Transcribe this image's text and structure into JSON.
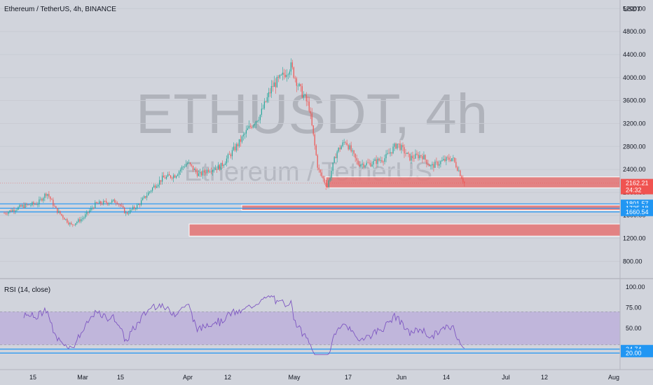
{
  "header": {
    "symbol_title": "Ethereum / TetherUS, 4h, BINANCE",
    "currency": "USDT"
  },
  "watermark": {
    "ticker": "ETHUSDT, 4h",
    "name": "Ethereum / TetherUS"
  },
  "rsi_label": "RSI (14, close)",
  "price_tags": [
    {
      "id": "last",
      "value": "2162.21",
      "countdown": "24:32",
      "color": "#f05350"
    },
    {
      "id": "l1",
      "value": "1801.57",
      "color": "#2196f3"
    },
    {
      "id": "l2",
      "value": "1725.18",
      "color": "#2196f3"
    },
    {
      "id": "l3",
      "value": "1660.54",
      "color": "#2196f3"
    }
  ],
  "rsi_tags": [
    {
      "id": "r1",
      "value": "24.74",
      "color": "#2196f3"
    },
    {
      "id": "r2",
      "value": "20.00",
      "color": "#2196f3"
    }
  ],
  "colors": {
    "up": "#26a69a",
    "down": "#ef5350",
    "rsi_line": "#7e57c2",
    "rsi_band": "#b39ddb",
    "zone_fill": "#e57373",
    "level_line": "#2196f3"
  },
  "chart_data": [
    {
      "type": "candlestick",
      "title": "Ethereum / TetherUS, 4h, BINANCE",
      "ylabel": "USDT",
      "y_ticks": [
        "800.00",
        "1200.00",
        "1600.00",
        "2000.00",
        "2400.00",
        "2800.00",
        "3200.00",
        "3600.00",
        "4000.00",
        "4400.00",
        "4800.00",
        "5200.00"
      ],
      "x_ticks": [
        "15",
        "Mar",
        "15",
        "Apr",
        "12",
        "May",
        "17",
        "Jun",
        "14",
        "Jul",
        "12",
        "Aug"
      ],
      "ylim": [
        500,
        5350
      ],
      "last_price": 2162.21,
      "horizontal_levels": [
        1801.57,
        1725.18,
        1660.54
      ],
      "zones": [
        {
          "low": 2080,
          "high": 2270
        },
        {
          "low": 1690,
          "high": 1780
        },
        {
          "low": 1240,
          "high": 1450
        }
      ],
      "close_path": [
        [
          0,
          1640
        ],
        [
          0.06,
          1760
        ],
        [
          0.11,
          1810
        ],
        [
          0.14,
          2000
        ],
        [
          0.17,
          1700
        ],
        [
          0.22,
          1430
        ],
        [
          0.26,
          1560
        ],
        [
          0.3,
          1800
        ],
        [
          0.37,
          1850
        ],
        [
          0.4,
          1630
        ],
        [
          0.44,
          1780
        ],
        [
          0.49,
          2100
        ],
        [
          0.52,
          2250
        ],
        [
          0.56,
          2300
        ],
        [
          0.6,
          2520
        ],
        [
          0.64,
          2300
        ],
        [
          0.67,
          2400
        ],
        [
          0.71,
          2450
        ],
        [
          0.74,
          2650
        ],
        [
          0.77,
          2860
        ],
        [
          0.8,
          3100
        ],
        [
          0.84,
          3350
        ],
        [
          0.88,
          3850
        ],
        [
          0.91,
          4000
        ],
        [
          0.94,
          4200
        ],
        [
          0.97,
          3800
        ],
        [
          1.0,
          3500
        ],
        [
          1.03,
          2400
        ],
        [
          1.06,
          2100
        ],
        [
          1.09,
          2700
        ],
        [
          1.12,
          2900
        ],
        [
          1.16,
          2500
        ],
        [
          1.2,
          2500
        ],
        [
          1.25,
          2600
        ],
        [
          1.29,
          2850
        ],
        [
          1.33,
          2600
        ],
        [
          1.37,
          2650
        ],
        [
          1.4,
          2450
        ],
        [
          1.44,
          2550
        ],
        [
          1.47,
          2600
        ],
        [
          1.49,
          2400
        ],
        [
          1.51,
          2162
        ]
      ]
    },
    {
      "type": "line",
      "title": "RSI (14, close)",
      "y_ticks": [
        "20.00",
        "24.74",
        "50.00",
        "75.00",
        "100.00"
      ],
      "ylim": [
        0,
        110
      ],
      "band": [
        30,
        70
      ],
      "levels": [
        24.74,
        20.0
      ]
    }
  ]
}
